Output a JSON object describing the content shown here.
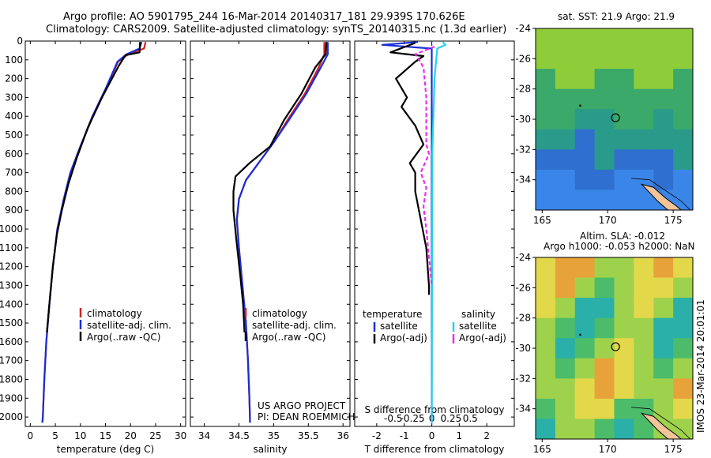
{
  "header": {
    "line1": "Argo profile: AO 5901795_244 16-Mar-2014 20140317_181 29.939S 170.626E",
    "line2": "Climatology: CARS2009. Satellite-adjusted climatology: synTS_20140315.nc (1.3d earlier)"
  },
  "credit": {
    "line1": "US ARGO PROJECT",
    "line2": "PI: DEAN ROEMMICH"
  },
  "watermark": "IMOS 23-Mar-2014 20:01:01",
  "colors": {
    "climatology": "#d42020",
    "satellite": "#1a2fd6",
    "argo": "#000000",
    "sal_satellite": "#22d4e8",
    "sal_argo": "#e830e8"
  },
  "depth_axis": {
    "ylim": [
      2050,
      0
    ],
    "ticks": [
      0,
      100,
      200,
      300,
      400,
      500,
      600,
      700,
      800,
      900,
      1000,
      1100,
      1200,
      1300,
      1400,
      1500,
      1600,
      1700,
      1800,
      1900,
      2000
    ]
  },
  "chart_data": [
    {
      "type": "line",
      "xlabel": "temperature (deg C)",
      "xlim": [
        -1,
        31
      ],
      "xticks": [
        0,
        5,
        10,
        15,
        20,
        25,
        30
      ],
      "legend": {
        "placement": "lower-center",
        "entries": [
          "climatology",
          "satellite-adj. clim.",
          "Argo(..raw -QC)"
        ]
      },
      "series": [
        {
          "name": "climatology",
          "color": "#d42020",
          "points": [
            [
              23,
              5
            ],
            [
              22.7,
              40
            ],
            [
              19.5,
              70
            ],
            [
              17.5,
              110
            ],
            [
              15.2,
              250
            ],
            [
              12.5,
              400
            ],
            [
              10,
              560
            ],
            [
              8,
              700
            ],
            [
              6.6,
              850
            ],
            [
              5.4,
              1000
            ],
            [
              4.5,
              1200
            ],
            [
              3.8,
              1400
            ],
            [
              3.2,
              1600
            ],
            [
              2.8,
              1800
            ],
            [
              2.5,
              2000
            ],
            [
              2.4,
              2030
            ]
          ]
        },
        {
          "name": "satellite-adj. clim.",
          "color": "#1a2fd6",
          "points": [
            [
              22.2,
              5
            ],
            [
              21.8,
              40
            ],
            [
              19.2,
              70
            ],
            [
              17.4,
              110
            ],
            [
              15.1,
              250
            ],
            [
              12.4,
              400
            ],
            [
              10,
              560
            ],
            [
              8,
              700
            ],
            [
              6.6,
              850
            ],
            [
              5.4,
              1000
            ],
            [
              4.5,
              1200
            ],
            [
              3.8,
              1400
            ],
            [
              3.2,
              1600
            ],
            [
              2.8,
              1800
            ],
            [
              2.5,
              2000
            ],
            [
              2.4,
              2030
            ]
          ]
        },
        {
          "name": "Argo(..raw -QC)",
          "color": "#000000",
          "points": [
            [
              21.9,
              5
            ],
            [
              21.8,
              60
            ],
            [
              19,
              75
            ],
            [
              17.7,
              130
            ],
            [
              14.3,
              300
            ],
            [
              11.5,
              460
            ],
            [
              9.3,
              620
            ],
            [
              7.6,
              760
            ],
            [
              6.3,
              900
            ],
            [
              5.3,
              1030
            ],
            [
              4.5,
              1200
            ],
            [
              3.8,
              1400
            ],
            [
              3.3,
              1550
            ]
          ]
        }
      ]
    },
    {
      "type": "line",
      "xlabel": "salinity",
      "xlim": [
        33.8,
        36.1
      ],
      "xticks": [
        34,
        34.5,
        35,
        35.5,
        36
      ],
      "legend": {
        "placement": "lower-center",
        "entries": [
          "climatology",
          "satellite-adj. clim.",
          "Argo(..raw -QC)"
        ]
      },
      "series": [
        {
          "name": "climatology",
          "color": "#d42020",
          "points": [
            [
              35.73,
              5
            ],
            [
              35.73,
              70
            ],
            [
              35.65,
              140
            ],
            [
              35.45,
              280
            ],
            [
              35.2,
              420
            ],
            [
              35.0,
              540
            ],
            [
              34.8,
              640
            ],
            [
              34.6,
              740
            ],
            [
              34.5,
              840
            ],
            [
              34.47,
              950
            ],
            [
              34.5,
              1100
            ],
            [
              34.55,
              1300
            ],
            [
              34.6,
              1500
            ],
            [
              34.63,
              1700
            ],
            [
              34.65,
              1900
            ],
            [
              34.66,
              2030
            ]
          ]
        },
        {
          "name": "satellite-adj. clim.",
          "color": "#1a2fd6",
          "points": [
            [
              35.78,
              5
            ],
            [
              35.78,
              70
            ],
            [
              35.68,
              140
            ],
            [
              35.47,
              280
            ],
            [
              35.22,
              420
            ],
            [
              35.0,
              540
            ],
            [
              34.8,
              640
            ],
            [
              34.6,
              740
            ],
            [
              34.5,
              840
            ],
            [
              34.47,
              950
            ],
            [
              34.5,
              1100
            ],
            [
              34.55,
              1300
            ],
            [
              34.6,
              1500
            ],
            [
              34.63,
              1700
            ],
            [
              34.65,
              1900
            ],
            [
              34.66,
              2030
            ]
          ]
        },
        {
          "name": "Argo(..raw -QC)",
          "color": "#000000",
          "points": [
            [
              35.76,
              5
            ],
            [
              35.75,
              70
            ],
            [
              35.6,
              140
            ],
            [
              35.4,
              280
            ],
            [
              35.15,
              420
            ],
            [
              34.95,
              560
            ],
            [
              34.65,
              650
            ],
            [
              34.45,
              720
            ],
            [
              34.42,
              800
            ],
            [
              34.42,
              900
            ],
            [
              34.46,
              1050
            ],
            [
              34.52,
              1250
            ],
            [
              34.56,
              1400
            ],
            [
              34.58,
              1550
            ]
          ]
        }
      ]
    },
    {
      "type": "line",
      "xlabel": "T difference from climatology",
      "top_label": "S difference from climatology",
      "xlim": [
        -2.8,
        3
      ],
      "xticks": [
        -2,
        -1,
        0,
        1,
        2
      ],
      "top_xticks": [
        -0.5,
        -0.25,
        0,
        0.25,
        0.5
      ],
      "legend": {
        "placement": "lower-center",
        "entries": [
          "temperature",
          "satellite",
          "Argo(-adj)",
          "salinity",
          "satellite",
          "Argo(-adj)"
        ]
      },
      "series": [
        {
          "name": "temperature satellite",
          "color": "#1a2fd6",
          "points": [
            [
              -0.5,
              5
            ],
            [
              -1.8,
              20
            ],
            [
              0,
              40
            ],
            [
              0,
              2030
            ]
          ]
        },
        {
          "name": "temperature Argo(-adj)",
          "color": "#000000",
          "points": [
            [
              -0.6,
              10
            ],
            [
              -1.5,
              60
            ],
            [
              -0.3,
              80
            ],
            [
              -0.6,
              110
            ],
            [
              -1.3,
              200
            ],
            [
              -0.9,
              300
            ],
            [
              -1.1,
              350
            ],
            [
              -0.6,
              450
            ],
            [
              -0.3,
              550
            ],
            [
              -0.8,
              650
            ],
            [
              -0.6,
              700
            ],
            [
              -0.6,
              800
            ],
            [
              -0.4,
              950
            ],
            [
              -0.2,
              1100
            ],
            [
              -0.1,
              1300
            ],
            [
              -0.1,
              1350
            ]
          ]
        },
        {
          "name": "salinity satellite",
          "color": "#22d4e8",
          "points": [
            [
              0.4,
              5
            ],
            [
              0.5,
              20
            ],
            [
              0.2,
              40
            ],
            [
              0.1,
              200
            ],
            [
              0.02,
              600
            ],
            [
              0,
              2030
            ]
          ]
        },
        {
          "name": "salinity Argo(-adj)",
          "color": "#e830e8",
          "points": [
            [
              0.1,
              30
            ],
            [
              -0.6,
              70
            ],
            [
              -0.5,
              90
            ],
            [
              -0.3,
              140
            ],
            [
              -0.2,
              300
            ],
            [
              -0.2,
              550
            ],
            [
              -0.1,
              600
            ],
            [
              -0.4,
              700
            ],
            [
              -0.2,
              780
            ],
            [
              -0.3,
              880
            ],
            [
              -0.2,
              1000
            ],
            [
              0,
              1300
            ]
          ]
        }
      ]
    }
  ],
  "maps": [
    {
      "title": "sat. SST: 21.9 Argo: 21.9",
      "xticks": [
        165,
        170,
        175
      ],
      "yticks": [
        -24,
        -26,
        -28,
        -30,
        -32,
        -34
      ],
      "xlim": [
        164.5,
        176.5
      ],
      "ylim": [
        -36,
        -24
      ],
      "marker": [
        170.6,
        -29.9
      ],
      "land": "New Zealand (North Island tip)"
    },
    {
      "title1": "Altim. SLA: -0.012",
      "title2": "Argo h1000: -0.053 h2000: NaN",
      "xticks": [
        165,
        170,
        175
      ],
      "yticks": [
        -24,
        -26,
        -28,
        -30,
        -32,
        -34
      ],
      "xlim": [
        164.5,
        176.5
      ],
      "ylim": [
        -36,
        -24
      ],
      "marker": [
        170.6,
        -29.9
      ]
    }
  ]
}
